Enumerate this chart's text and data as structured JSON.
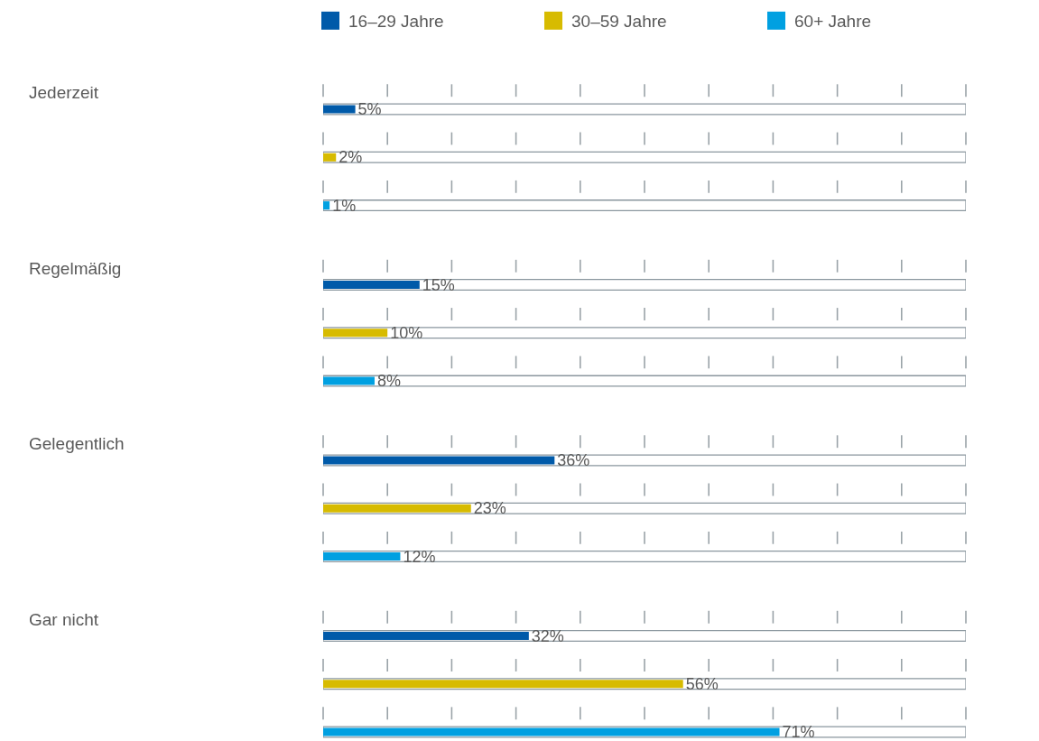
{
  "chart_data": {
    "type": "bar",
    "orientation": "horizontal",
    "categories": [
      "Jederzeit",
      "Regelmäßig",
      "Gelegentlich",
      "Gar nicht"
    ],
    "series": [
      {
        "name": "16–29 Jahre",
        "color": "#005aa9",
        "values": [
          5,
          15,
          36,
          32
        ],
        "value_labels": [
          "5%",
          "15%",
          "36%",
          "32%"
        ]
      },
      {
        "name": "30–59 Jahre",
        "color": "#d7bb00",
        "values": [
          2,
          10,
          23,
          56
        ],
        "value_labels": [
          "2%",
          "10%",
          "23%",
          "56%"
        ]
      },
      {
        "name": "60+ Jahre",
        "color": "#00a0e1",
        "values": [
          1,
          8,
          12,
          71
        ],
        "value_labels": [
          "1%",
          "8%",
          "12%",
          "71%"
        ]
      }
    ],
    "xlim": [
      0,
      100
    ],
    "xticks": [
      {
        "value": 0,
        "label": null
      },
      {
        "value": 10,
        "label": null
      },
      {
        "value": 20,
        "label": null
      },
      {
        "value": 30,
        "label": null
      },
      {
        "value": 40,
        "label": null
      },
      {
        "value": 50,
        "label": null
      },
      {
        "value": 60,
        "label": null
      },
      {
        "value": 70,
        "label": null
      },
      {
        "value": 80,
        "label": null
      },
      {
        "value": 90,
        "label": null
      },
      {
        "value": 100,
        "label": null
      }
    ],
    "legend": "top"
  }
}
